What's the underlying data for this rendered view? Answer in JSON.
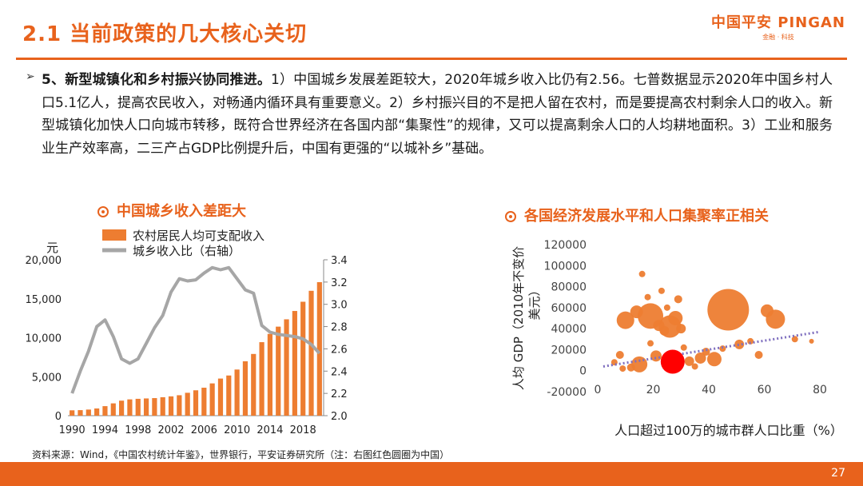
{
  "header": {
    "title": "2.1 当前政策的几大核心关切",
    "logo_main": "中国平安 PINGAN",
    "logo_sub": "金融 · 科技"
  },
  "paragraph": {
    "lead": "5、新型城镇化和乡村振兴协同推进。",
    "body": "1）中国城乡发展差距较大，2020年城乡收入比仍有2.56。七普数据显示2020年中国乡村人口5.1亿人，提高农民收入，对畅通内循环具有重要意义。2）乡村振兴目的不是把人留在农村，而是要提高农村剩余人口的收入。新型城镇化加快人口向城市转移，既符合世界经济在各国内部“集聚性”的规律，又可以提高剩余人口的人均耕地面积。3）工业和服务业生产效率高，二三产占GDP比例提升后，中国有更强的“以城补乡”基础。"
  },
  "left_title": "中国城乡收入差距大",
  "right_title": "各国经济发展水平和人口集聚率正相关",
  "source": "资料来源：Wind，《中国农村统计年鉴》，世界银行，平安证券研究所（注：右图红色圆圈为中国）",
  "page_number": "27",
  "colors": {
    "accent": "#e8621c",
    "bar": "#ed7d31",
    "line": "#a6a6a6",
    "china": "#ff0000",
    "trend": "#7f6fbf"
  },
  "chart_data": [
    {
      "type": "bar+line",
      "title": "中国城乡收入差距大",
      "y_unit_label": "元",
      "legend": [
        "农村居民人均可支配收入",
        "城乡收入比（右轴）"
      ],
      "x": [
        1990,
        1991,
        1992,
        1993,
        1994,
        1995,
        1996,
        1997,
        1998,
        1999,
        2000,
        2001,
        2002,
        2003,
        2004,
        2005,
        2006,
        2007,
        2008,
        2009,
        2010,
        2011,
        2012,
        2013,
        2014,
        2015,
        2016,
        2017,
        2018,
        2019,
        2020
      ],
      "x_ticks": [
        "1990",
        "1994",
        "1998",
        "2002",
        "2006",
        "2010",
        "2014",
        "2018"
      ],
      "bar_series": {
        "name": "农村居民人均可支配收入",
        "values": [
          686,
          709,
          784,
          922,
          1221,
          1578,
          1926,
          2090,
          2162,
          2210,
          2253,
          2366,
          2476,
          2622,
          2936,
          3255,
          3587,
          4140,
          4761,
          5153,
          5919,
          6977,
          7917,
          9430,
          10489,
          11422,
          12363,
          13432,
          14617,
          16021,
          17131
        ]
      },
      "line_series": {
        "name": "城乡收入比（右轴）",
        "values": [
          2.2,
          2.4,
          2.58,
          2.8,
          2.86,
          2.71,
          2.51,
          2.47,
          2.51,
          2.65,
          2.79,
          2.9,
          3.11,
          3.23,
          3.21,
          3.22,
          3.28,
          3.33,
          3.31,
          3.33,
          3.23,
          3.13,
          3.1,
          2.81,
          2.75,
          2.73,
          2.72,
          2.71,
          2.69,
          2.64,
          2.56
        ]
      },
      "y_left": {
        "range": [
          0,
          20000
        ],
        "ticks": [
          "0",
          "5,000",
          "10,000",
          "15,000",
          "20,000"
        ]
      },
      "y_right": {
        "range": [
          2.0,
          3.4
        ],
        "ticks": [
          "2.0",
          "2.2",
          "2.4",
          "2.6",
          "2.8",
          "3.0",
          "3.2",
          "3.4"
        ]
      }
    },
    {
      "type": "scatter",
      "title": "各国经济发展水平和人口集聚率正相关",
      "xlabel": "人口超过100万的城市群人口比重（%）",
      "ylabel_lines": [
        "人均 GDP（2010年不变价",
        "美元）"
      ],
      "x_range": [
        0,
        80
      ],
      "y_range": [
        -20000,
        120000
      ],
      "x_ticks": [
        "0",
        "20",
        "40",
        "60",
        "80"
      ],
      "y_ticks": [
        "-20000",
        "0",
        "20000",
        "40000",
        "60000",
        "80000",
        "100000",
        "120000"
      ],
      "china": {
        "x": 27,
        "y": 8500,
        "size": "large"
      },
      "trendline": [
        [
          2,
          4000
        ],
        [
          80,
          37000
        ]
      ],
      "points": [
        {
          "x": 47,
          "y": 58000,
          "s": 26
        },
        {
          "x": 19,
          "y": 52000,
          "s": 16
        },
        {
          "x": 26,
          "y": 42000,
          "s": 14
        },
        {
          "x": 10,
          "y": 48000,
          "s": 11
        },
        {
          "x": 64,
          "y": 49000,
          "s": 12
        },
        {
          "x": 61,
          "y": 57000,
          "s": 8
        },
        {
          "x": 14,
          "y": 56000,
          "s": 8
        },
        {
          "x": 28,
          "y": 50000,
          "s": 9
        },
        {
          "x": 22,
          "y": 43000,
          "s": 7
        },
        {
          "x": 24,
          "y": 38000,
          "s": 6
        },
        {
          "x": 30,
          "y": 40000,
          "s": 6
        },
        {
          "x": 18,
          "y": 70000,
          "s": 4
        },
        {
          "x": 23,
          "y": 76000,
          "s": 4
        },
        {
          "x": 16,
          "y": 92000,
          "s": 4
        },
        {
          "x": 29,
          "y": 68000,
          "s": 5
        },
        {
          "x": 25,
          "y": 60000,
          "s": 4
        },
        {
          "x": 15,
          "y": 6000,
          "s": 10
        },
        {
          "x": 21,
          "y": 14000,
          "s": 7
        },
        {
          "x": 33,
          "y": 9000,
          "s": 6
        },
        {
          "x": 37,
          "y": 12000,
          "s": 7
        },
        {
          "x": 42,
          "y": 11000,
          "s": 9
        },
        {
          "x": 51,
          "y": 25000,
          "s": 6
        },
        {
          "x": 55,
          "y": 28000,
          "s": 4
        },
        {
          "x": 8,
          "y": 15000,
          "s": 5
        },
        {
          "x": 12,
          "y": 3000,
          "s": 5
        },
        {
          "x": 6,
          "y": 8000,
          "s": 4
        },
        {
          "x": 31,
          "y": 22000,
          "s": 4
        },
        {
          "x": 39,
          "y": 18000,
          "s": 5
        },
        {
          "x": 45,
          "y": 21000,
          "s": 4
        },
        {
          "x": 58,
          "y": 15000,
          "s": 5
        },
        {
          "x": 35,
          "y": 4000,
          "s": 4
        },
        {
          "x": 19,
          "y": 26000,
          "s": 4
        },
        {
          "x": 71,
          "y": 30000,
          "s": 4
        },
        {
          "x": 77,
          "y": 28000,
          "s": 3
        },
        {
          "x": 9,
          "y": 2000,
          "s": 4
        },
        {
          "x": 26,
          "y": 2000,
          "s": 3
        }
      ]
    }
  ]
}
